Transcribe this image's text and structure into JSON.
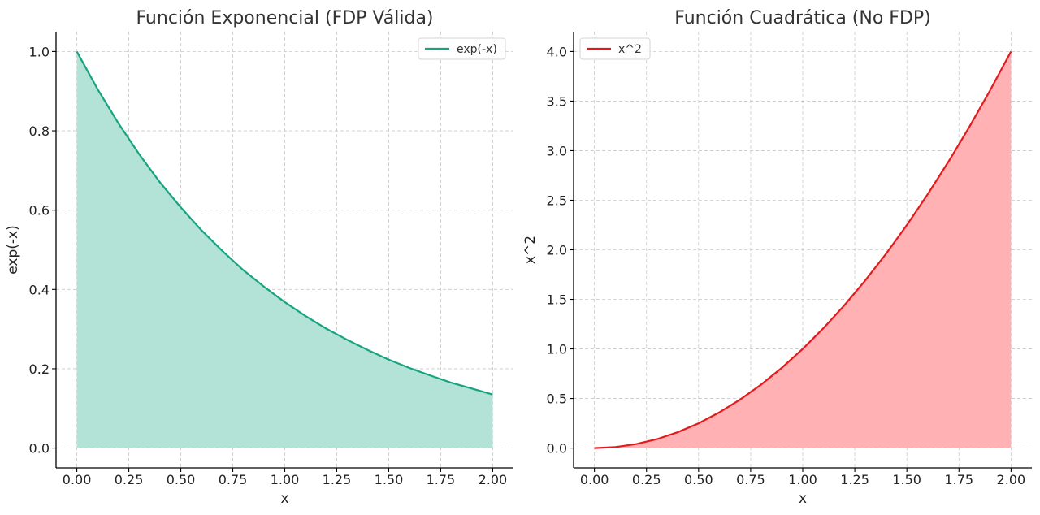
{
  "chart_data": [
    {
      "type": "area",
      "title": "Función Exponencial (FDP Válida)",
      "xlabel": "x",
      "ylabel": "exp(-x)",
      "xlim": [
        -0.1,
        2.1
      ],
      "ylim": [
        -0.05,
        1.05
      ],
      "xticks": [
        0.0,
        0.25,
        0.5,
        0.75,
        1.0,
        1.25,
        1.5,
        1.75,
        2.0
      ],
      "xtick_labels": [
        "0.00",
        "0.25",
        "0.50",
        "0.75",
        "1.00",
        "1.25",
        "1.50",
        "1.75",
        "2.00"
      ],
      "yticks": [
        0.0,
        0.2,
        0.4,
        0.6,
        0.8,
        1.0
      ],
      "ytick_labels": [
        "0.0",
        "0.2",
        "0.4",
        "0.6",
        "0.8",
        "1.0"
      ],
      "grid": true,
      "legend_position": "top-right",
      "series": [
        {
          "name": "exp(-x)",
          "color": "#16a37f",
          "fill_color": "#b3e2d6",
          "x": [
            0,
            0.1,
            0.2,
            0.3,
            0.4,
            0.5,
            0.6,
            0.7,
            0.8,
            0.9,
            1.0,
            1.1,
            1.2,
            1.3,
            1.4,
            1.5,
            1.6,
            1.7,
            1.8,
            1.9,
            2.0
          ],
          "y": [
            1.0,
            0.905,
            0.819,
            0.741,
            0.67,
            0.607,
            0.549,
            0.497,
            0.449,
            0.407,
            0.368,
            0.333,
            0.301,
            0.273,
            0.247,
            0.223,
            0.202,
            0.183,
            0.165,
            0.15,
            0.135
          ]
        }
      ]
    },
    {
      "type": "area",
      "title": "Función Cuadrática (No FDP)",
      "xlabel": "x",
      "ylabel": "x^2",
      "xlim": [
        -0.1,
        2.1
      ],
      "ylim": [
        -0.2,
        4.2
      ],
      "xticks": [
        0.0,
        0.25,
        0.5,
        0.75,
        1.0,
        1.25,
        1.5,
        1.75,
        2.0
      ],
      "xtick_labels": [
        "0.00",
        "0.25",
        "0.50",
        "0.75",
        "1.00",
        "1.25",
        "1.50",
        "1.75",
        "2.00"
      ],
      "yticks": [
        0.0,
        0.5,
        1.0,
        1.5,
        2.0,
        2.5,
        3.0,
        3.5,
        4.0
      ],
      "ytick_labels": [
        "0.0",
        "0.5",
        "1.0",
        "1.5",
        "2.0",
        "2.5",
        "3.0",
        "3.5",
        "4.0"
      ],
      "grid": true,
      "legend_position": "top-left",
      "series": [
        {
          "name": "x^2",
          "color": "#e31a1c",
          "fill_color": "#ffb1b3",
          "x": [
            0,
            0.1,
            0.2,
            0.3,
            0.4,
            0.5,
            0.6,
            0.7,
            0.8,
            0.9,
            1.0,
            1.1,
            1.2,
            1.3,
            1.4,
            1.5,
            1.6,
            1.7,
            1.8,
            1.9,
            2.0
          ],
          "y": [
            0.0,
            0.01,
            0.04,
            0.09,
            0.16,
            0.25,
            0.36,
            0.49,
            0.64,
            0.81,
            1.0,
            1.21,
            1.44,
            1.69,
            1.96,
            2.25,
            2.56,
            2.89,
            3.24,
            3.61,
            4.0
          ]
        }
      ]
    }
  ]
}
